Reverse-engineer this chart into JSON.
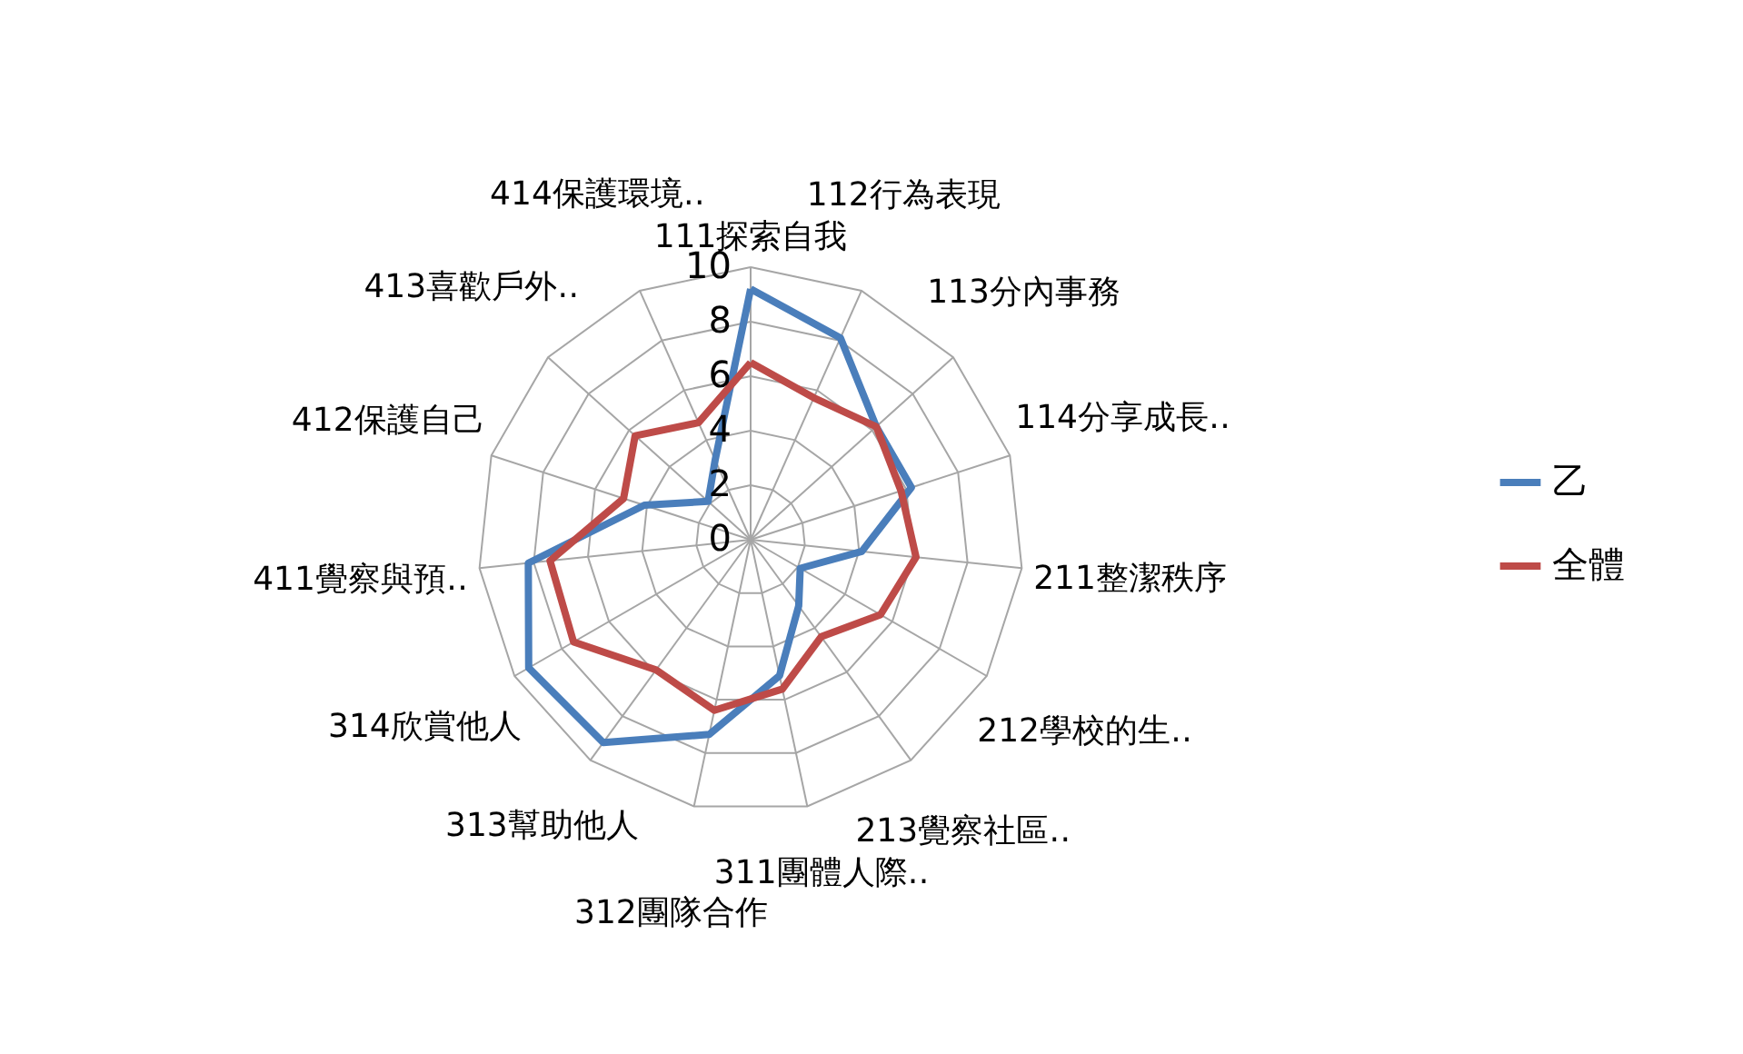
{
  "chart_data": {
    "type": "radar",
    "categories": [
      "111探索自我",
      "112行為表現",
      "113分內事務",
      "114分享成長‥",
      "211整潔秩序",
      "212學校的生‥",
      "213覺察社區‥",
      "311團體人際‥",
      "312團隊合作",
      "313幫助他人",
      "314欣賞他人",
      "411覺察與預‥",
      "412保護自己",
      "413喜歡戶外‥",
      "414保護環境‥"
    ],
    "series": [
      {
        "name": "乙",
        "color": "#4a7ebb",
        "values": [
          9.2,
          8.1,
          6.2,
          6.2,
          4.1,
          2.1,
          3.0,
          5.1,
          7.3,
          9.2,
          9.4,
          8.2,
          4.1,
          2.1,
          3.2
        ]
      },
      {
        "name": "全體",
        "color": "#be4b48",
        "values": [
          6.5,
          5.7,
          6.2,
          5.8,
          6.1,
          5.5,
          4.4,
          5.6,
          6.4,
          5.9,
          7.5,
          7.4,
          4.9,
          5.7,
          4.7
        ]
      }
    ],
    "ylim": [
      0,
      10
    ],
    "yticks": [
      0,
      2,
      4,
      6,
      8,
      10
    ],
    "grid": true,
    "legend": "right"
  }
}
